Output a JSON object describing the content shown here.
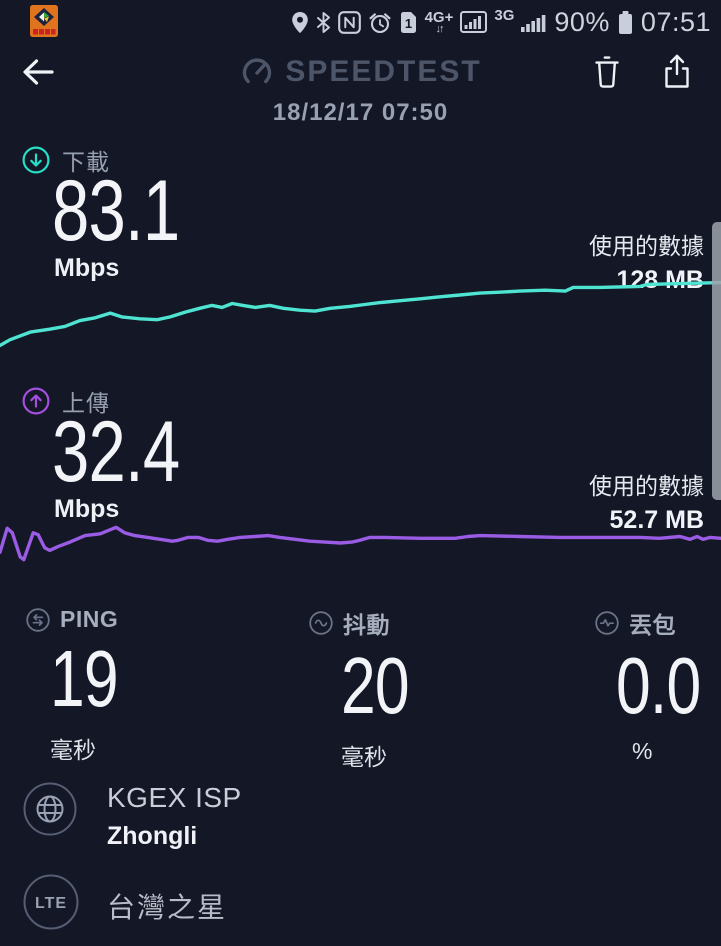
{
  "status_bar": {
    "time": "07:51",
    "battery_percent": "90%",
    "sim_badge": "1",
    "nfc_glyph": "N",
    "network_primary": "4G+",
    "network_primary_arrows": "↓↑",
    "network_secondary": "3G"
  },
  "header": {
    "title": "SPEEDTEST",
    "timestamp": "18/12/17 07:50"
  },
  "download": {
    "label": "下載",
    "value": "83.1",
    "unit": "Mbps",
    "data_used_label": "使用的數據",
    "data_used_value": "128 MB"
  },
  "upload": {
    "label": "上傳",
    "value": "32.4",
    "unit": "Mbps",
    "data_used_label": "使用的數據",
    "data_used_value": "52.7 MB"
  },
  "stats": {
    "ping": {
      "label": "PING",
      "value": "19",
      "unit": "毫秒"
    },
    "jitter": {
      "label": "抖動",
      "value": "20",
      "unit": "毫秒"
    },
    "packet_loss": {
      "label": "丟包",
      "value": "0.0",
      "unit": "%"
    }
  },
  "connection": {
    "isp_name": "KGEX ISP",
    "server_location": "Zhongli",
    "network_type": "LTE",
    "carrier": "台灣之星"
  },
  "colors": {
    "background": "#131726",
    "download_accent": "#26dfc7",
    "download_line": "#4fe3d1",
    "upload_accent": "#a44fe0",
    "upload_line": "#9a5ce4",
    "logo_gray": "#4d5569",
    "status_text": "#c9cedb"
  },
  "chart_data": [
    {
      "id": "download",
      "type": "line",
      "series_name": "download-speed",
      "unit": "Mbps",
      "result_mbps": 83.1,
      "data_used_mb": 128,
      "color": "#4fe3d1",
      "ylim": [
        0,
        100
      ],
      "x_axis": "test-progress-percent",
      "x_percent": [
        0,
        1.4,
        4.2,
        6.9,
        9,
        11.1,
        13.2,
        15.3,
        16.9,
        19.4,
        21.8,
        23.6,
        25.7,
        27.7,
        29.4,
        30.8,
        32.2,
        33.7,
        35.4,
        37.4,
        39.3,
        41.6,
        43.7,
        45.8,
        48.5,
        50.6,
        52.7,
        55.5,
        58.3,
        61,
        63.8,
        66.6,
        69.3,
        72.1,
        75.6,
        78.4,
        79.5,
        83.2,
        88.8,
        89.7,
        94.3,
        100
      ],
      "values": [
        9.8,
        17.1,
        26.8,
        30.5,
        34.1,
        41.5,
        45.1,
        51.2,
        46.3,
        43.9,
        42.7,
        46.3,
        52.4,
        57.3,
        61,
        58.5,
        63.4,
        61,
        58.5,
        61,
        57.3,
        54.9,
        53.7,
        57.3,
        59.8,
        62.2,
        64.6,
        67.1,
        69.5,
        72,
        74.4,
        76.8,
        78,
        79.3,
        80.5,
        79.3,
        84.1,
        84.1,
        85.4,
        87.8,
        89,
        90.2
      ]
    },
    {
      "id": "upload",
      "type": "line",
      "series_name": "upload-speed",
      "unit": "Mbps",
      "result_mbps": 32.4,
      "data_used_mb": 52.7,
      "color": "#9a5ce4",
      "ylim": [
        0,
        60
      ],
      "x_axis": "test-progress-percent",
      "x_percent": [
        0,
        1,
        1.7,
        2.8,
        3.3,
        4.6,
        5.3,
        6.2,
        6.9,
        8,
        9.7,
        11.8,
        13.9,
        15.5,
        16.1,
        17.3,
        18.7,
        20.5,
        22.2,
        23.9,
        24.7,
        26.1,
        27.5,
        28.8,
        30.2,
        31.6,
        33.3,
        35.4,
        37.2,
        38.8,
        40.9,
        43,
        45.1,
        47.2,
        48.8,
        49.9,
        51.3,
        53.4,
        58.3,
        63.1,
        64.9,
        66.6,
        72.1,
        77.7,
        83.2,
        88.8,
        91.5,
        94.3,
        95.7,
        96.7,
        97.5,
        98.5,
        100
      ],
      "values": [
        18.9,
        47.8,
        42.2,
        13.3,
        10,
        42.2,
        40,
        24.4,
        21.1,
        25.6,
        31.1,
        38.9,
        41.1,
        46.7,
        48.9,
        42.2,
        38.9,
        36.7,
        34.4,
        32.2,
        33.3,
        36.7,
        36.7,
        33.3,
        32.2,
        34.4,
        36.7,
        37.8,
        38.9,
        36.7,
        34.4,
        32.2,
        31.1,
        30,
        31.1,
        33.3,
        36.7,
        36.7,
        35.6,
        35.6,
        37.8,
        38.9,
        37.8,
        36.7,
        36.7,
        36.7,
        35.6,
        37.8,
        34.4,
        37.8,
        34.4,
        36.7,
        35.6
      ]
    }
  ]
}
